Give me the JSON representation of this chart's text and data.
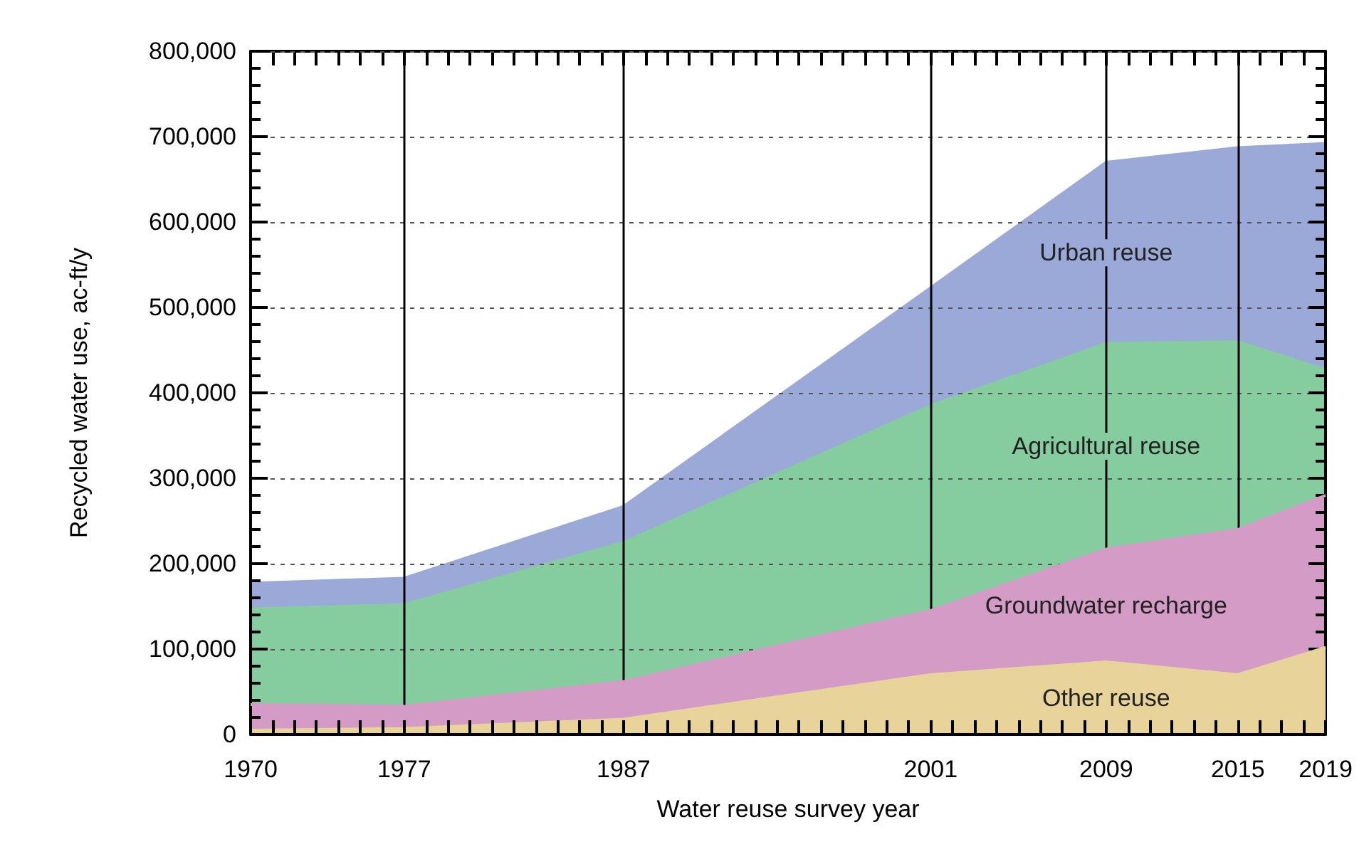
{
  "chart_data": {
    "type": "area",
    "stacked": true,
    "xlabel": "Water reuse survey year",
    "ylabel": "Recycled water use, ac-ft/y",
    "x": [
      1970,
      1977,
      1987,
      2001,
      2009,
      2015,
      2019
    ],
    "xlim": [
      1970,
      2019
    ],
    "xticks": [
      1970,
      1977,
      1987,
      2001,
      2009,
      2015,
      2019
    ],
    "ylim": [
      0,
      800000
    ],
    "yticks": [
      0,
      {
        "value": 100000,
        "label": "100,000"
      },
      {
        "value": 200000,
        "label": "200,000"
      },
      {
        "value": 300000,
        "label": "300,000"
      },
      {
        "value": 400000,
        "label": "400,000"
      },
      {
        "value": 500000,
        "label": "500,000"
      },
      {
        "value": 600000,
        "label": "600,000"
      },
      {
        "value": 700000,
        "label": "700,000"
      },
      {
        "value": 800000,
        "label": "800,000"
      }
    ],
    "grid": "y",
    "legend": false,
    "series": [
      {
        "name": "Other reuse",
        "color": "#e8d49a",
        "values": [
          5000,
          7000,
          18000,
          70000,
          85000,
          70000,
          102000
        ]
      },
      {
        "name": "Groundwater recharge",
        "color": "#d39bc6",
        "values": [
          30000,
          26000,
          44000,
          75000,
          132000,
          170000,
          178000
        ]
      },
      {
        "name": "Agricultural reuse",
        "color": "#85cc9e",
        "values": [
          112000,
          119000,
          163000,
          240000,
          241000,
          220000,
          147000
        ]
      },
      {
        "name": "Urban reuse",
        "color": "#9aa9d8",
        "values": [
          30000,
          31000,
          42000,
          138000,
          212000,
          227000,
          265000
        ]
      }
    ],
    "ref_lines": [
      {
        "axis": "x",
        "value": 1977,
        "color": "#000000"
      },
      {
        "axis": "x",
        "value": 1987,
        "color": "#000000"
      },
      {
        "axis": "x",
        "value": 2001,
        "color": "#000000"
      },
      {
        "axis": "x",
        "value": 2009,
        "color": "#000000"
      },
      {
        "axis": "x",
        "value": 2015,
        "color": "#000000"
      }
    ]
  }
}
